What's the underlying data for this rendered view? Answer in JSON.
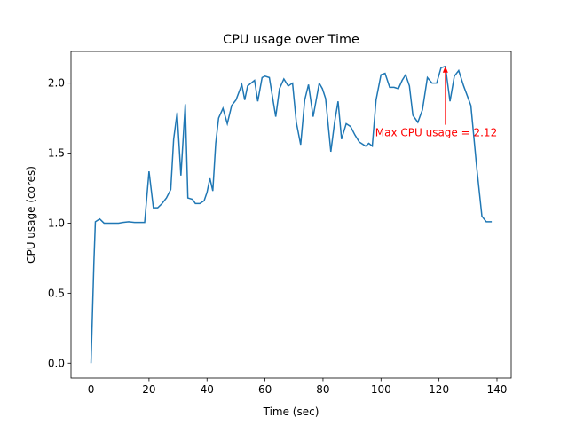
{
  "chart_data": {
    "type": "line",
    "title": "CPU usage over Time",
    "xlabel": "Time (sec)",
    "ylabel": "CPU usage (cores)",
    "x": [
      0,
      1,
      1.5,
      3,
      4.5,
      6,
      8,
      9.5,
      11,
      13,
      15,
      17,
      18.5,
      20,
      21.5,
      23,
      24.5,
      26,
      27.5,
      28.5,
      29.7,
      31,
      32.5,
      33.4,
      35,
      36,
      37.5,
      39,
      40,
      41,
      42,
      43,
      44,
      45.5,
      47,
      48.5,
      50,
      52,
      53,
      54,
      56.4,
      57.5,
      59,
      60,
      61.5,
      63.7,
      65,
      66.5,
      68,
      69.5,
      70.8,
      72.3,
      73.7,
      75,
      76.6,
      78.7,
      79.8,
      80.9,
      82.7,
      84,
      85.2,
      86.4,
      88,
      89.5,
      91,
      92.5,
      94.7,
      95.8,
      97,
      98.3,
      100,
      101.4,
      103,
      104.5,
      106,
      107.3,
      108.5,
      109.8,
      111,
      112.7,
      114.3,
      116,
      117.6,
      119.2,
      120.7,
      122.2,
      123.8,
      125.3,
      126.8,
      128.5,
      131,
      133,
      134.8,
      136.3,
      138.2
    ],
    "series": [
      {
        "name": "CPU usage",
        "color": "#1f77b4",
        "values": [
          0,
          0.72,
          1.01,
          1.03,
          1.0,
          1.0,
          1.0,
          1.0,
          1.005,
          1.01,
          1.005,
          1.005,
          1.005,
          1.37,
          1.11,
          1.11,
          1.14,
          1.18,
          1.24,
          1.6,
          1.79,
          1.34,
          1.85,
          1.18,
          1.17,
          1.14,
          1.14,
          1.16,
          1.22,
          1.32,
          1.23,
          1.57,
          1.75,
          1.82,
          1.71,
          1.84,
          1.88,
          1.99,
          1.88,
          1.98,
          2.02,
          1.87,
          2.04,
          2.05,
          2.04,
          1.76,
          1.96,
          2.03,
          1.98,
          2.0,
          1.72,
          1.56,
          1.88,
          1.99,
          1.76,
          2.0,
          1.96,
          1.89,
          1.51,
          1.72,
          1.87,
          1.6,
          1.71,
          1.69,
          1.63,
          1.58,
          1.55,
          1.57,
          1.55,
          1.88,
          2.06,
          2.07,
          1.97,
          1.97,
          1.96,
          2.02,
          2.06,
          1.98,
          1.77,
          1.72,
          1.81,
          2.04,
          2.0,
          2.0,
          2.11,
          2.12,
          1.87,
          2.05,
          2.09,
          1.98,
          1.84,
          1.4,
          1.05,
          1.01,
          1.01
        ]
      }
    ],
    "xlim": [
      -6.9,
      144.9
    ],
    "ylim": [
      -0.106,
      2.226
    ],
    "xticks": [
      0,
      20,
      40,
      60,
      80,
      100,
      120,
      140
    ],
    "yticks": [
      {
        "value": 0,
        "label": "0.0"
      },
      0.5,
      {
        "value": 1,
        "label": "1.0"
      },
      1.5,
      {
        "value": 2,
        "label": "2.0"
      }
    ],
    "annotation": {
      "text": "Max CPU usage = 2.12",
      "xy": [
        122.2,
        2.12
      ],
      "xytext": [
        98,
        1.62
      ],
      "color": "red"
    }
  }
}
